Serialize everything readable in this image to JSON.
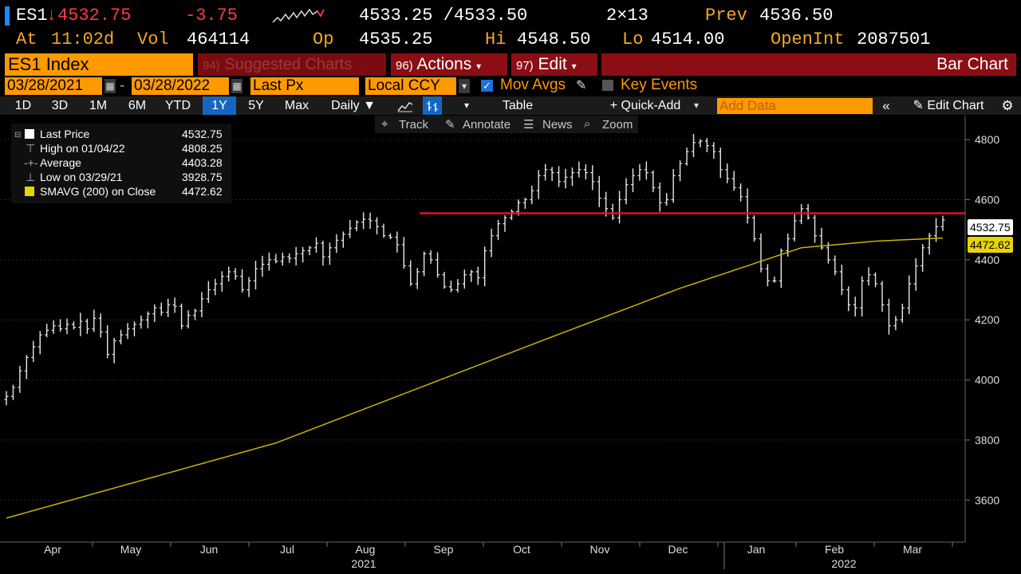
{
  "quote": {
    "ticker": "ES1",
    "arrow": "↓",
    "last": "4532.75",
    "change": "-3.75",
    "bid_ask": "4533.25 /4533.50",
    "size": "2×13",
    "prev_label": "Prev",
    "prev": "4536.50",
    "at_label": "At",
    "time": "11:02d",
    "vol_label": "Vol",
    "vol": "464114",
    "op_label": "Op",
    "op": "4535.25",
    "hi_label": "Hi",
    "hi": "4548.50",
    "lo_label": "Lo",
    "lo": "4514.00",
    "oi_label": "OpenInt",
    "oi": "2087501"
  },
  "menu": {
    "security": "ES1 Index",
    "suggested_num": "94)",
    "suggested": "Suggested Charts",
    "actions_num": "96)",
    "actions": "Actions",
    "edit_num": "97)",
    "edit": "Edit",
    "chart_type": "Bar Chart"
  },
  "options": {
    "start_date": "03/28/2021",
    "dash": "-",
    "end_date": "03/28/2022",
    "field": "Last Px",
    "currency": "Local CCY",
    "mov_avgs": "Mov Avgs",
    "key_events": "Key Events"
  },
  "toolbar": {
    "periods": [
      "1D",
      "3D",
      "1M",
      "6M",
      "YTD",
      "1Y",
      "5Y",
      "Max"
    ],
    "selected_period": "1Y",
    "frequency": "Daily ▼",
    "table": "Table",
    "quick_add": "+ Quick-Add",
    "add_data_placeholder": "Add Data",
    "edit_chart": "Edit Chart"
  },
  "subtools": {
    "track": "Track",
    "annotate": "Annotate",
    "news": "News",
    "zoom": "Zoom"
  },
  "legend": {
    "rows": [
      {
        "label": "Last Price",
        "value": "4532.75"
      },
      {
        "label": "High on 01/04/22",
        "value": "4808.25"
      },
      {
        "label": "Average",
        "value": "4403.28"
      },
      {
        "label": "Low on 03/29/21",
        "value": "3928.75"
      },
      {
        "label": "SMAVG (200)  on Close",
        "value": "4472.62"
      }
    ]
  },
  "colors": {
    "amber": "#f5a623",
    "orange_field": "#ff9900",
    "menu_red": "#8b0e14",
    "sma_line": "#c8b400",
    "resistance_line": "#e0102a",
    "selected_blue": "#1566c0"
  },
  "chart_data": {
    "type": "bar",
    "title": "",
    "xlabel": "",
    "ylabel": "",
    "ylim": [
      3460,
      4880
    ],
    "yticks": [
      3600,
      3800,
      4000,
      4200,
      4400,
      4600,
      4800
    ],
    "months": [
      "Apr",
      "May",
      "Jun",
      "Jul",
      "Aug",
      "Sep",
      "Oct",
      "Nov",
      "Dec",
      "Jan",
      "Feb",
      "Mar"
    ],
    "years": [
      "2021",
      "2022"
    ],
    "last_price_tag": "4532.75",
    "sma_tag": "4472.62",
    "resistance_level": 4555,
    "series": [
      {
        "name": "Last Price",
        "closes": [
          3945,
          3975,
          4030,
          4075,
          4110,
          4150,
          4165,
          4180,
          4170,
          4185,
          4175,
          4195,
          4170,
          4205,
          4160,
          4085,
          4130,
          4150,
          4170,
          4185,
          4200,
          4220,
          4240,
          4225,
          4250,
          4245,
          4180,
          4215,
          4230,
          4270,
          4300,
          4320,
          4345,
          4360,
          4345,
          4300,
          4330,
          4370,
          4385,
          4400,
          4395,
          4410,
          4405,
          4420,
          4430,
          4440,
          4455,
          4410,
          4440,
          4465,
          4485,
          4505,
          4525,
          4535,
          4530,
          4510,
          4480,
          4475,
          4450,
          4380,
          4320,
          4360,
          4420,
          4400,
          4350,
          4310,
          4300,
          4320,
          4350,
          4360,
          4340,
          4430,
          4480,
          4520,
          4540,
          4560,
          4590,
          4600,
          4630,
          4680,
          4700,
          4690,
          4660,
          4675,
          4690,
          4700,
          4690,
          4660,
          4605,
          4570,
          4540,
          4600,
          4650,
          4680,
          4700,
          4690,
          4640,
          4590,
          4600,
          4680,
          4720,
          4760,
          4790,
          4795,
          4780,
          4760,
          4700,
          4670,
          4640,
          4610,
          4540,
          4470,
          4370,
          4330,
          4330,
          4430,
          4470,
          4530,
          4570,
          4540,
          4480,
          4440,
          4400,
          4360,
          4300,
          4250,
          4240,
          4330,
          4350,
          4320,
          4250,
          4180,
          4200,
          4240,
          4320,
          4380,
          4440,
          4480,
          4510,
          4532.75
        ]
      },
      {
        "name": "SMAVG (200)  on Close",
        "anchors": [
          [
            0,
            3540
          ],
          [
            40,
            3790
          ],
          [
            80,
            4135
          ],
          [
            100,
            4305
          ],
          [
            118,
            4440
          ],
          [
            129,
            4462
          ],
          [
            139,
            4472.62
          ]
        ]
      }
    ]
  }
}
